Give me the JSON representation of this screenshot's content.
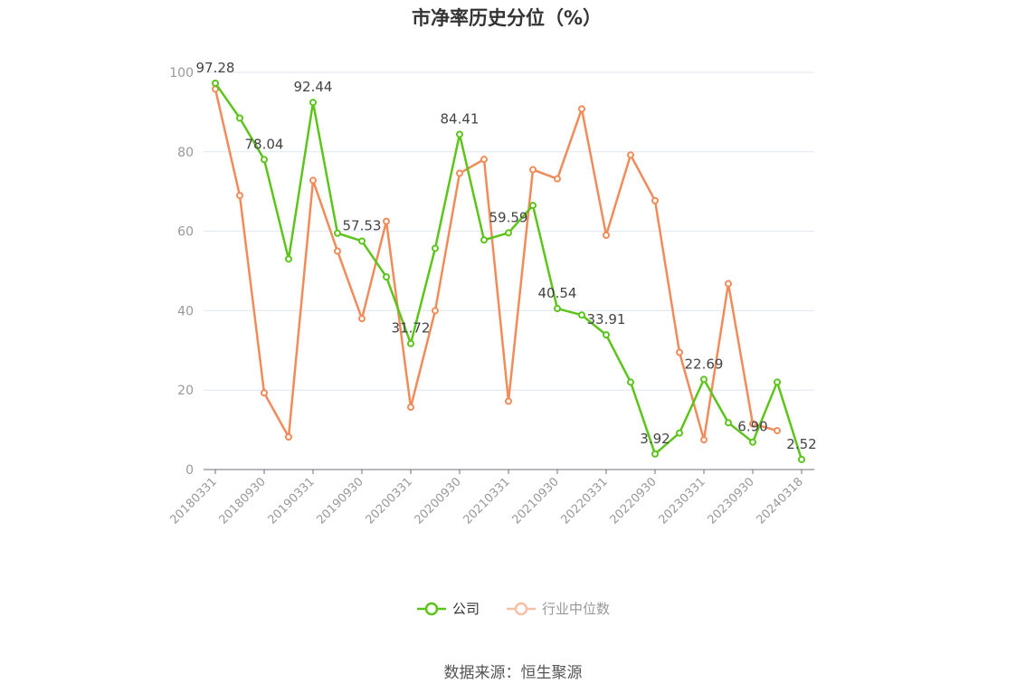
{
  "chart_data": {
    "type": "line",
    "title": "市净率历史分位（%）",
    "x": [
      "20180331",
      "20180630",
      "20180930",
      "20181231",
      "20190331",
      "20190630",
      "20190930",
      "20191231",
      "20200331",
      "20200630",
      "20200930",
      "20201231",
      "20210331",
      "20210630",
      "20210930",
      "20211231",
      "20220331",
      "20220630",
      "20220930",
      "20221231",
      "20230331",
      "20230630",
      "20230930",
      "20231231",
      "20240318"
    ],
    "x_tick_labels": [
      "20180331",
      "20180930",
      "20190331",
      "20190930",
      "20200331",
      "20200930",
      "20210331",
      "20210930",
      "20220331",
      "20220930",
      "20230331",
      "20230930",
      "20240318"
    ],
    "ylim": [
      0,
      100
    ],
    "y_ticks": [
      0,
      20,
      40,
      60,
      80,
      100
    ],
    "grid": true,
    "legend_position": "bottom",
    "series": [
      {
        "name": "公司",
        "color": "#5cc41b",
        "values": [
          97.28,
          88.5,
          78.04,
          53.0,
          92.44,
          59.5,
          57.53,
          48.5,
          31.72,
          55.7,
          84.41,
          57.8,
          59.59,
          66.5,
          40.54,
          38.9,
          33.91,
          22.0,
          3.92,
          9.2,
          22.69,
          11.8,
          6.9,
          22.0,
          2.52
        ],
        "data_labels": {
          "0": "97.28",
          "2": "78.04",
          "4": "92.44",
          "6": "57.53",
          "8": "31.72",
          "10": "84.41",
          "12": "59.59",
          "14": "40.54",
          "16": "33.91",
          "18": "3.92",
          "20": "22.69",
          "22": "6.90",
          "24": "2.52"
        }
      },
      {
        "name": "行业中位数",
        "color": "#f08b5a",
        "values": [
          95.8,
          69.0,
          19.3,
          8.2,
          72.8,
          55.0,
          38.0,
          62.5,
          15.7,
          40.0,
          74.6,
          78.1,
          17.2,
          75.5,
          73.2,
          90.8,
          59.0,
          79.2,
          67.7,
          29.5,
          7.5,
          46.8,
          11.5,
          9.8,
          null
        ]
      }
    ]
  },
  "legend": {
    "company_label": "公司",
    "industry_label": "行业中位数",
    "industry_color_off": "#f7bfa5"
  },
  "source_text": "数据来源：恒生聚源",
  "colors": {
    "axis": "#6e7079",
    "grid": "#e0e6f1",
    "tick_text": "#999999",
    "label_text": "#444444"
  }
}
